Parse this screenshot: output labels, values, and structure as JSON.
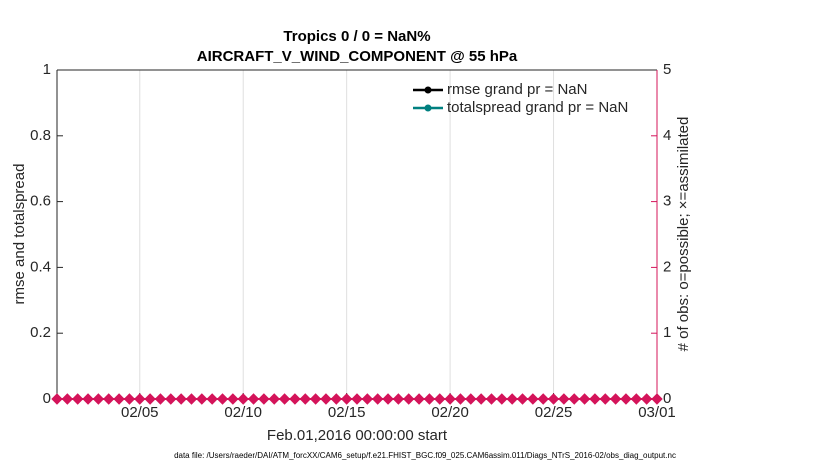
{
  "chart_data": {
    "type": "line",
    "title": "Tropics 0 / 0 = NaN%",
    "subtitle": "AIRCRAFT_V_WIND_COMPONENT @ 55 hPa",
    "ylabel": "rmse and totalspread",
    "y2label": "# of obs: o=possible; ×=assimilated",
    "xlabel": "Feb.01,2016 00:00:00 start",
    "footnote": "data file: /Users/raeder/DAI/ATM_forcXX/CAM6_setup/f.e21.FHIST_BGC.f09_025.CAM6assim.011/Diags_NTrS_2016-02/obs_diag_output.nc",
    "x": [
      0,
      0.5,
      1,
      1.5,
      2,
      2.5,
      3,
      3.5,
      4,
      4.5,
      5,
      5.5,
      6,
      6.5,
      7,
      7.5,
      8,
      8.5,
      9,
      9.5,
      10,
      10.5,
      11,
      11.5,
      12,
      12.5,
      13,
      13.5,
      14,
      14.5,
      15,
      15.5,
      16,
      16.5,
      17,
      17.5,
      18,
      18.5,
      19,
      19.5,
      20,
      20.5,
      21,
      21.5,
      22,
      22.5,
      23,
      23.5,
      24,
      24.5,
      25,
      25.5,
      26,
      26.5,
      27,
      27.5,
      28,
      28.5,
      29
    ],
    "xlim": [
      0,
      29
    ],
    "xticks": [
      {
        "value": 4,
        "label": "02/05"
      },
      {
        "value": 9,
        "label": "02/10"
      },
      {
        "value": 14,
        "label": "02/15"
      },
      {
        "value": 19,
        "label": "02/20"
      },
      {
        "value": 24,
        "label": "02/25"
      },
      {
        "value": 29,
        "label": "03/01"
      }
    ],
    "ylim": [
      0,
      1
    ],
    "yticks": [
      0,
      0.2,
      0.4,
      0.6,
      0.8,
      1
    ],
    "y2lim": [
      0,
      5
    ],
    "y2ticks": [
      0,
      1,
      2,
      3,
      4,
      5
    ],
    "y2color": "#d4145a",
    "xgrid": true,
    "legend": "northeast",
    "legend_text_color": "#1ea8e0",
    "series": [
      {
        "name": "rmse grand pr = NaN",
        "color": "#000000",
        "values": [
          null,
          null,
          null,
          null,
          null,
          null,
          null,
          null,
          null,
          null,
          null,
          null,
          null,
          null,
          null,
          null,
          null,
          null,
          null,
          null,
          null,
          null,
          null,
          null,
          null,
          null,
          null,
          null,
          null,
          null,
          null,
          null,
          null,
          null,
          null,
          null,
          null,
          null,
          null,
          null,
          null,
          null,
          null,
          null,
          null,
          null,
          null,
          null,
          null,
          null,
          null,
          null,
          null,
          null,
          null,
          null,
          null,
          null,
          null
        ]
      },
      {
        "name": "totalspread grand pr = NaN",
        "color": "#008080",
        "values": [
          null,
          null,
          null,
          null,
          null,
          null,
          null,
          null,
          null,
          null,
          null,
          null,
          null,
          null,
          null,
          null,
          null,
          null,
          null,
          null,
          null,
          null,
          null,
          null,
          null,
          null,
          null,
          null,
          null,
          null,
          null,
          null,
          null,
          null,
          null,
          null,
          null,
          null,
          null,
          null,
          null,
          null,
          null,
          null,
          null,
          null,
          null,
          null,
          null,
          null,
          null,
          null,
          null,
          null,
          null,
          null,
          null,
          null,
          null
        ]
      },
      {
        "color": "#d4145a",
        "axis": "y2",
        "values": [
          0,
          0,
          0,
          0,
          0,
          0,
          0,
          0,
          0,
          0,
          0,
          0,
          0,
          0,
          0,
          0,
          0,
          0,
          0,
          0,
          0,
          0,
          0,
          0,
          0,
          0,
          0,
          0,
          0,
          0,
          0,
          0,
          0,
          0,
          0,
          0,
          0,
          0,
          0,
          0,
          0,
          0,
          0,
          0,
          0,
          0,
          0,
          0,
          0,
          0,
          0,
          0,
          0,
          0,
          0,
          0,
          0,
          0,
          0
        ]
      }
    ]
  }
}
